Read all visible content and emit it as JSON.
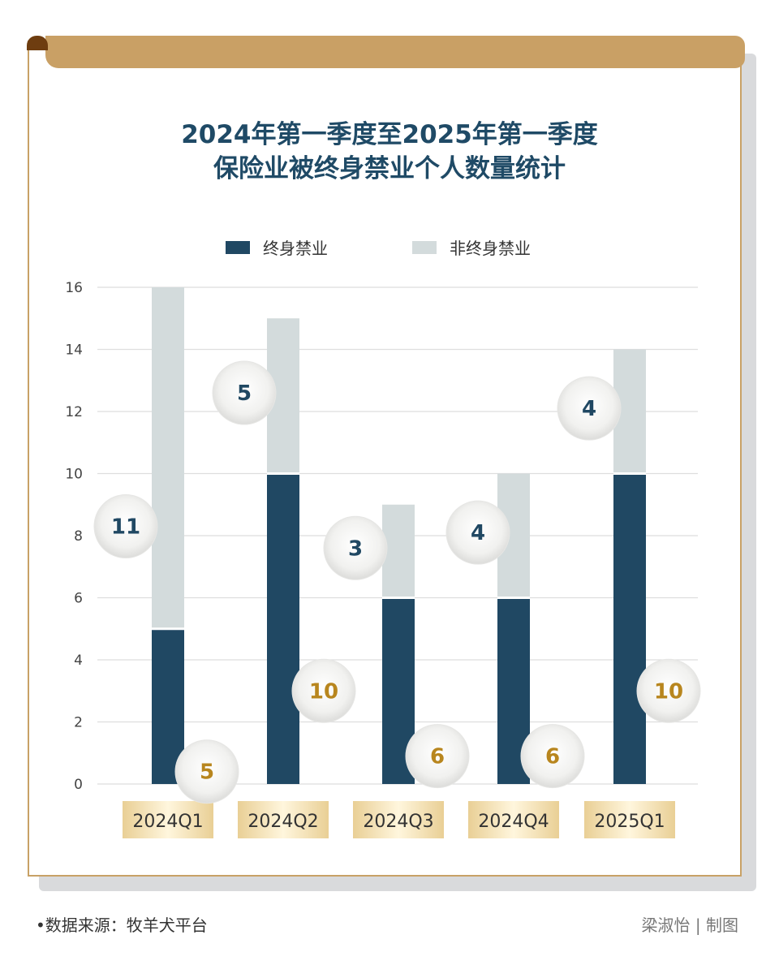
{
  "title_lines": [
    "2024年第一季度至2025年第一季度",
    "保险业被终身禁业个人数量统计"
  ],
  "colors": {
    "lifetime": "#204863",
    "non_lifetime": "#d3dbdc",
    "accent": "#c9a065",
    "label_dark": "#204863",
    "label_gold": "#b8861e"
  },
  "chart_data": {
    "type": "bar",
    "stacked": true,
    "categories": [
      "2024Q1",
      "2024Q2",
      "2024Q3",
      "2024Q4",
      "2025Q1"
    ],
    "series": [
      {
        "name": "终身禁业",
        "values": [
          5,
          10,
          6,
          6,
          10
        ]
      },
      {
        "name": "非终身禁业",
        "values": [
          11,
          5,
          3,
          4,
          4
        ]
      }
    ],
    "ylim": [
      0,
      16
    ],
    "yticks": [
      0,
      2,
      4,
      6,
      8,
      10,
      12,
      14,
      16
    ],
    "grid": true,
    "legend": "top"
  },
  "footer": {
    "source": "•数据来源：牧羊犬平台",
    "credit": "梁淑怡 | 制图"
  }
}
